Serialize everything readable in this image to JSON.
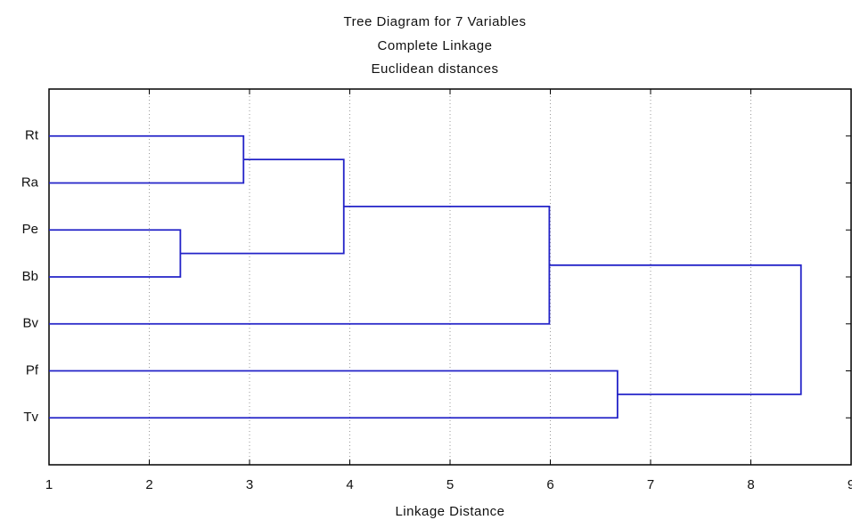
{
  "chart_data": {
    "type": "dendrogram",
    "title": "Tree Diagram for 7   Variables",
    "subtitle": [
      "Complete Linkage",
      "Euclidean distances"
    ],
    "xlabel": "Linkage Distance",
    "leaves": [
      "Rt",
      "Ra",
      "Pe",
      "Bb",
      "Bv",
      "Pf",
      "Tv"
    ],
    "merges": [
      {
        "left": 0,
        "right": 1,
        "height": 2.94
      },
      {
        "left": 2,
        "right": 3,
        "height": 2.31
      },
      {
        "left": 7,
        "right": 8,
        "height": 3.94
      },
      {
        "left": 9,
        "right": 4,
        "height": 5.99
      },
      {
        "left": 5,
        "right": 6,
        "height": 6.67
      },
      {
        "left": 10,
        "right": 11,
        "height": 8.5
      }
    ],
    "color": "#2323c8",
    "xlim": [
      1,
      9
    ],
    "xticks": [
      1,
      2,
      3,
      4,
      5,
      6,
      7,
      8,
      9
    ],
    "grid": true
  }
}
